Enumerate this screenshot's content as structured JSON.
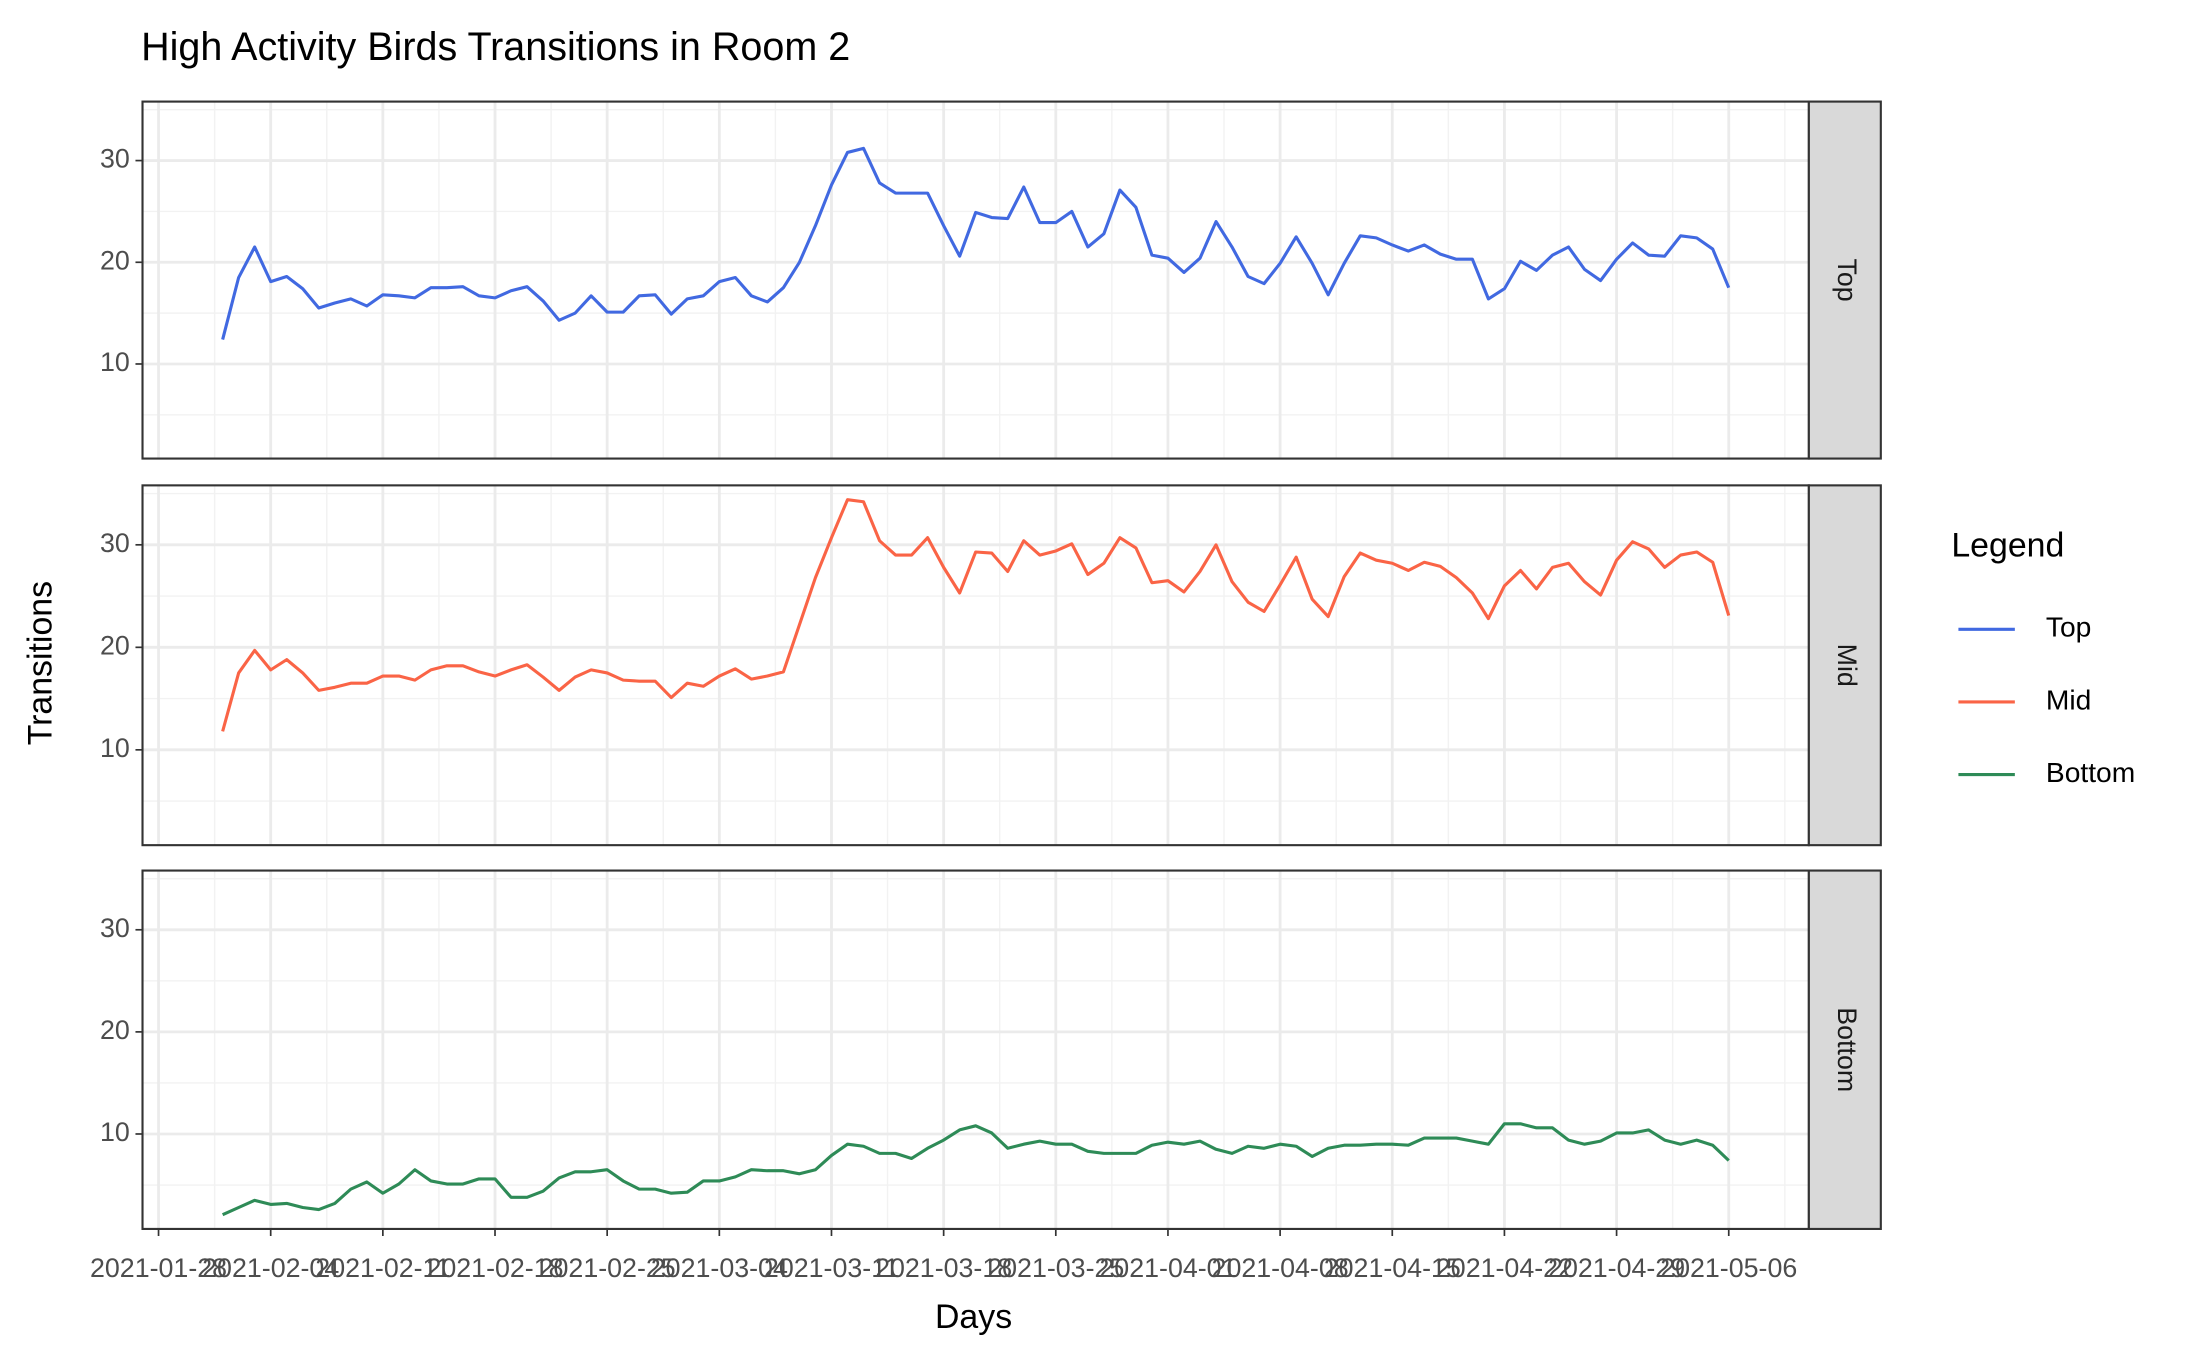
{
  "chart_data": {
    "type": "line",
    "title": "High Activity Birds Transitions in Room 2",
    "xlabel": "Days",
    "ylabel": "Transitions",
    "legend_title": "Legend",
    "x": [
      "2021-02-01",
      "2021-02-02",
      "2021-02-03",
      "2021-02-04",
      "2021-02-05",
      "2021-02-06",
      "2021-02-07",
      "2021-02-08",
      "2021-02-09",
      "2021-02-10",
      "2021-02-11",
      "2021-02-12",
      "2021-02-13",
      "2021-02-14",
      "2021-02-15",
      "2021-02-16",
      "2021-02-17",
      "2021-02-18",
      "2021-02-19",
      "2021-02-20",
      "2021-02-21",
      "2021-02-22",
      "2021-02-23",
      "2021-02-24",
      "2021-02-25",
      "2021-02-26",
      "2021-02-27",
      "2021-02-28",
      "2021-03-01",
      "2021-03-02",
      "2021-03-03",
      "2021-03-04",
      "2021-03-05",
      "2021-03-06",
      "2021-03-07",
      "2021-03-08",
      "2021-03-09",
      "2021-03-10",
      "2021-03-11",
      "2021-03-12",
      "2021-03-13",
      "2021-03-14",
      "2021-03-15",
      "2021-03-16",
      "2021-03-17",
      "2021-03-18",
      "2021-03-19",
      "2021-03-20",
      "2021-03-21",
      "2021-03-22",
      "2021-03-23",
      "2021-03-24",
      "2021-03-25",
      "2021-03-26",
      "2021-03-27",
      "2021-03-28",
      "2021-03-29",
      "2021-03-30",
      "2021-03-31",
      "2021-04-01",
      "2021-04-02",
      "2021-04-03",
      "2021-04-04",
      "2021-04-05",
      "2021-04-06",
      "2021-04-07",
      "2021-04-08",
      "2021-04-09",
      "2021-04-10",
      "2021-04-11",
      "2021-04-12",
      "2021-04-13",
      "2021-04-14",
      "2021-04-15",
      "2021-04-16",
      "2021-04-17",
      "2021-04-18",
      "2021-04-19",
      "2021-04-20",
      "2021-04-21",
      "2021-04-22",
      "2021-04-23",
      "2021-04-24",
      "2021-04-25",
      "2021-04-26",
      "2021-04-27",
      "2021-04-28",
      "2021-04-29",
      "2021-04-30",
      "2021-05-01",
      "2021-05-02",
      "2021-05-03",
      "2021-05-04",
      "2021-05-05",
      "2021-05-06"
    ],
    "series": [
      {
        "name": "Top",
        "color": "#4169e1",
        "values": [
          12.4,
          18.5,
          21.5,
          18.1,
          18.6,
          17.4,
          15.5,
          16,
          16.4,
          15.7,
          16.8,
          16.7,
          16.5,
          17.5,
          17.5,
          17.6,
          16.7,
          16.5,
          17.2,
          17.6,
          16.2,
          14.3,
          15,
          16.7,
          15.1,
          15.1,
          16.7,
          16.8,
          14.9,
          16.4,
          16.7,
          18.1,
          18.5,
          16.7,
          16.1,
          17.5,
          20,
          23.6,
          27.6,
          30.8,
          31.2,
          27.8,
          26.8,
          26.8,
          26.8,
          23.6,
          20.6,
          24.9,
          24.4,
          24.3,
          27.4,
          23.9,
          23.9,
          25,
          21.5,
          22.8,
          27.1,
          25.4,
          20.7,
          20.4,
          19,
          20.4,
          24,
          21.5,
          18.6,
          17.9,
          19.9,
          22.5,
          19.9,
          16.8,
          19.9,
          22.6,
          22.4,
          21.7,
          21.1,
          21.7,
          20.8,
          20.3,
          20.3,
          16.4,
          17.4,
          20.1,
          19.2,
          20.7,
          21.5,
          19.3,
          18.2,
          20.3,
          21.9,
          20.7,
          20.6,
          22.6,
          22.4,
          21.3,
          17.5
        ]
      },
      {
        "name": "Mid",
        "color": "#fa6446",
        "values": [
          11.8,
          17.5,
          19.7,
          17.8,
          18.8,
          17.5,
          15.8,
          16.1,
          16.5,
          16.5,
          17.2,
          17.2,
          16.8,
          17.8,
          18.2,
          18.2,
          17.6,
          17.2,
          17.8,
          18.3,
          17.1,
          15.8,
          17.1,
          17.8,
          17.5,
          16.8,
          16.7,
          16.7,
          15.1,
          16.5,
          16.2,
          17.2,
          17.9,
          16.9,
          17.2,
          17.6,
          22.2,
          26.8,
          30.7,
          34.4,
          34.2,
          30.4,
          29,
          29,
          30.7,
          27.8,
          25.3,
          29.3,
          29.2,
          27.4,
          30.4,
          29,
          29.4,
          30.1,
          27.1,
          28.2,
          30.7,
          29.7,
          26.3,
          26.5,
          25.4,
          27.4,
          30,
          26.4,
          24.4,
          23.5,
          26.1,
          28.8,
          24.7,
          23,
          26.9,
          29.2,
          28.5,
          28.2,
          27.5,
          28.3,
          27.9,
          26.8,
          25.3,
          22.8,
          26,
          27.5,
          25.7,
          27.8,
          28.2,
          26.4,
          25.1,
          28.5,
          30.3,
          29.6,
          27.8,
          29,
          29.3,
          28.3,
          23.1
        ]
      },
      {
        "name": "Bottom",
        "color": "#2e8b57",
        "values": [
          2.1,
          2.8,
          3.5,
          3.1,
          3.2,
          2.8,
          2.6,
          3.2,
          4.6,
          5.3,
          4.2,
          5.1,
          6.5,
          5.4,
          5.1,
          5.1,
          5.6,
          5.6,
          3.8,
          3.8,
          4.4,
          5.7,
          6.3,
          6.3,
          6.5,
          5.4,
          4.6,
          4.6,
          4.2,
          4.3,
          5.4,
          5.4,
          5.8,
          6.5,
          6.4,
          6.4,
          6.1,
          6.5,
          7.9,
          9,
          8.8,
          8.1,
          8.1,
          7.6,
          8.6,
          9.4,
          10.4,
          10.8,
          10.1,
          8.6,
          9,
          9.3,
          9,
          9,
          8.3,
          8.1,
          8.1,
          8.1,
          8.9,
          9.2,
          9,
          9.3,
          8.5,
          8.1,
          8.8,
          8.6,
          9,
          8.8,
          7.8,
          8.6,
          8.9,
          8.9,
          9,
          9,
          8.9,
          9.6,
          9.6,
          9.6,
          9.3,
          9,
          11,
          11,
          10.6,
          10.6,
          9.4,
          9,
          9.3,
          10.1,
          10.1,
          10.4,
          9.4,
          9,
          9.4,
          8.9,
          7.4
        ]
      }
    ],
    "xlim": [
      "2021-01-27",
      "2021-05-11"
    ],
    "xticks": [
      "2021-01-28",
      "2021-02-04",
      "2021-02-11",
      "2021-02-18",
      "2021-02-25",
      "2021-03-04",
      "2021-03-11",
      "2021-03-18",
      "2021-03-25",
      "2021-04-01",
      "2021-04-08",
      "2021-04-15",
      "2021-04-22",
      "2021-04-29",
      "2021-05-06"
    ],
    "ylim": [
      0.7,
      35.8
    ],
    "yticks": [
      10,
      20,
      30
    ],
    "grid": true,
    "legend": "right"
  }
}
